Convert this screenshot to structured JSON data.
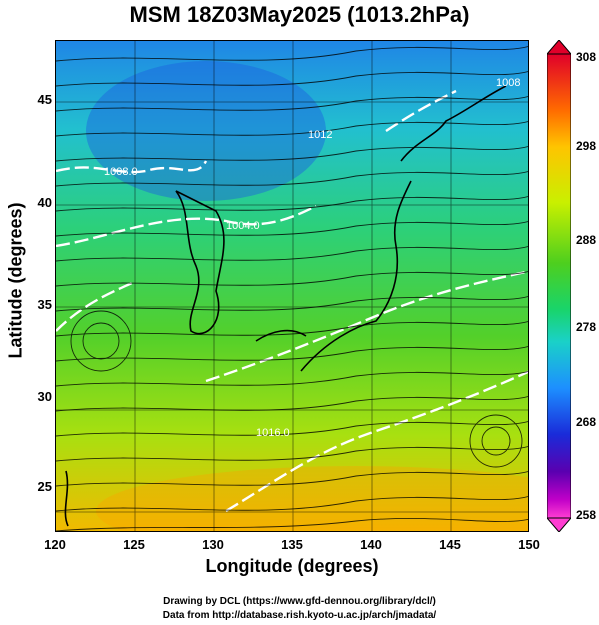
{
  "title": "MSM 18Z03May2025 (1013.2hPa)",
  "axes": {
    "xlabel": "Longitude (degrees)",
    "ylabel": "Latitude  (degrees)",
    "xticks": [
      "120",
      "125",
      "130",
      "135",
      "140",
      "145",
      "150"
    ],
    "yticks": [
      "45",
      "40",
      "35",
      "30",
      "25"
    ]
  },
  "colorbar": {
    "ticks": [
      "308",
      "298",
      "288",
      "278",
      "268",
      "258"
    ],
    "colors": [
      "#e0002a",
      "#ff6a00",
      "#ffc400",
      "#c9f000",
      "#4ecf1e",
      "#19d46a",
      "#1ad1c8",
      "#1d8fff",
      "#1a2bd9",
      "#5a00b0",
      "#c000c8",
      "#ff3dd2"
    ]
  },
  "contours": [
    {
      "label": "1008.0"
    },
    {
      "label": "1004.0"
    },
    {
      "label": "1016.0"
    },
    {
      "label": "1012"
    },
    {
      "label": "1008"
    }
  ],
  "footer": {
    "line1": "Drawing by DCL (https://www.gfd-dennou.org/library/dcl/)",
    "line2": "Data from http://database.rish.kyoto-u.ac.jp/arch/jmadata/"
  }
}
